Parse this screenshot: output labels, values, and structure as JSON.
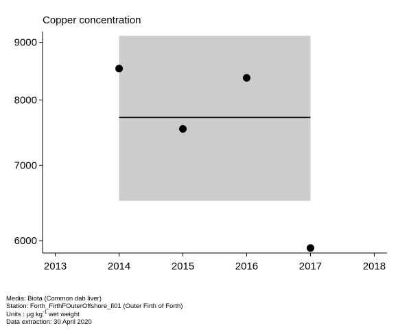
{
  "chart_data": {
    "type": "scatter",
    "title": "Copper concentration",
    "xlabel": "",
    "ylabel": "",
    "xlim": [
      2012.8,
      2018.2
    ],
    "ylim": [
      5850,
      9200
    ],
    "x_ticks": [
      2013,
      2014,
      2015,
      2016,
      2017,
      2018
    ],
    "y_ticks": [
      6000,
      7000,
      8000,
      9000
    ],
    "y_scale": "log",
    "grid": false,
    "points": [
      {
        "x": 2014,
        "y": 8530
      },
      {
        "x": 2015,
        "y": 7540
      },
      {
        "x": 2016,
        "y": 8370
      },
      {
        "x": 2017,
        "y": 5910
      }
    ],
    "mean_line": {
      "x_start": 2014,
      "x_end": 2017,
      "y": 7720
    },
    "band": {
      "x_start": 2014,
      "x_end": 2017,
      "y_low": 6510,
      "y_high": 9120
    },
    "colors": {
      "band": "#cccccc",
      "points": "#000000",
      "line": "#000000"
    }
  },
  "footer": {
    "media": "Media: Biota (Common dab liver)",
    "station": "Station: Forth_FirthFOuterOffshore_fi01 (Outer Firth of Forth)",
    "units_prefix": "Units : µg kg",
    "units_sup": "-1",
    "units_suffix": " wet weight",
    "extraction": "Data extraction: 30 April 2020"
  }
}
